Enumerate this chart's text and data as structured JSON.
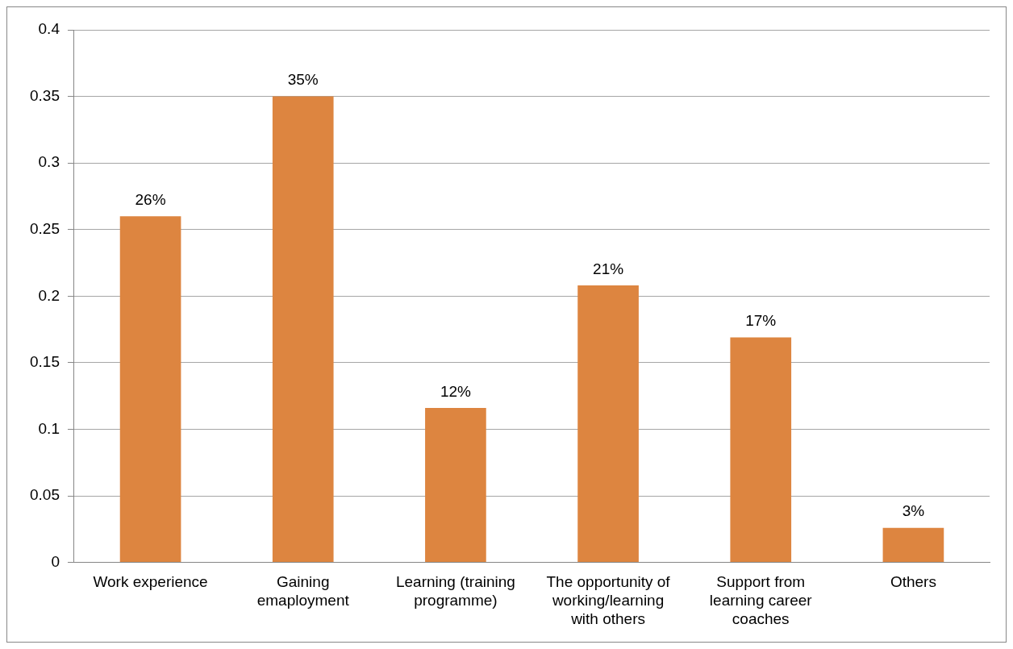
{
  "chart_data": {
    "type": "bar",
    "categories": [
      "Work experience",
      "Gaining emaployment",
      "Learning (training programme)",
      "The opportunity of working/learning with others",
      "Support from learning career coaches",
      "Others"
    ],
    "values": [
      0.26,
      0.35,
      0.116,
      0.208,
      0.169,
      0.026
    ],
    "value_labels": [
      "26%",
      "35%",
      "12%",
      "21%",
      "17%",
      "3%"
    ],
    "color": "#dd8540",
    "ylim": [
      0,
      0.4
    ],
    "yticks": [
      0,
      0.05,
      0.1,
      0.15,
      0.2,
      0.25,
      0.3,
      0.35,
      0.4
    ],
    "grid": "y",
    "legend": false
  }
}
